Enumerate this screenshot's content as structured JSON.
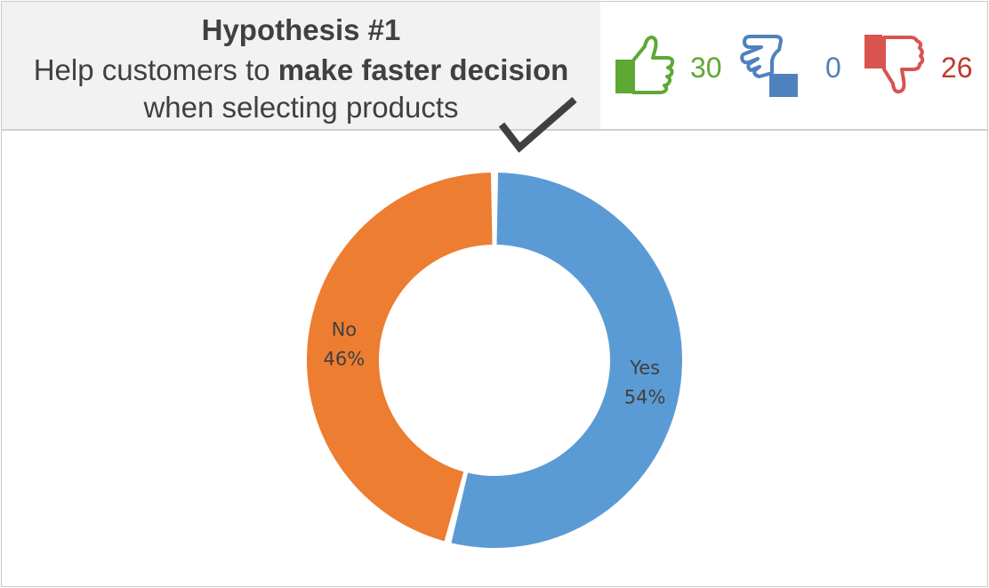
{
  "header": {
    "title": "Hypothesis #1",
    "line2_prefix": "Help customers to ",
    "line2_bold": "make faster decision",
    "line3": "when selecting products"
  },
  "votes": [
    {
      "icon": "thumbs-up-icon",
      "count": "30",
      "color": "#5ea834"
    },
    {
      "icon": "thumbs-sideways-icon",
      "count": "0",
      "color": "#4f81bd"
    },
    {
      "icon": "thumbs-down-icon",
      "count": "26",
      "color": "#c0392b"
    }
  ],
  "chart_data": {
    "type": "pie",
    "donut": true,
    "slices": [
      {
        "label": "Yes",
        "percent": "54%",
        "value": 54,
        "color": "#5b9bd5"
      },
      {
        "label": "No",
        "percent": "46%",
        "value": 46,
        "color": "#ed7d31"
      }
    ]
  }
}
